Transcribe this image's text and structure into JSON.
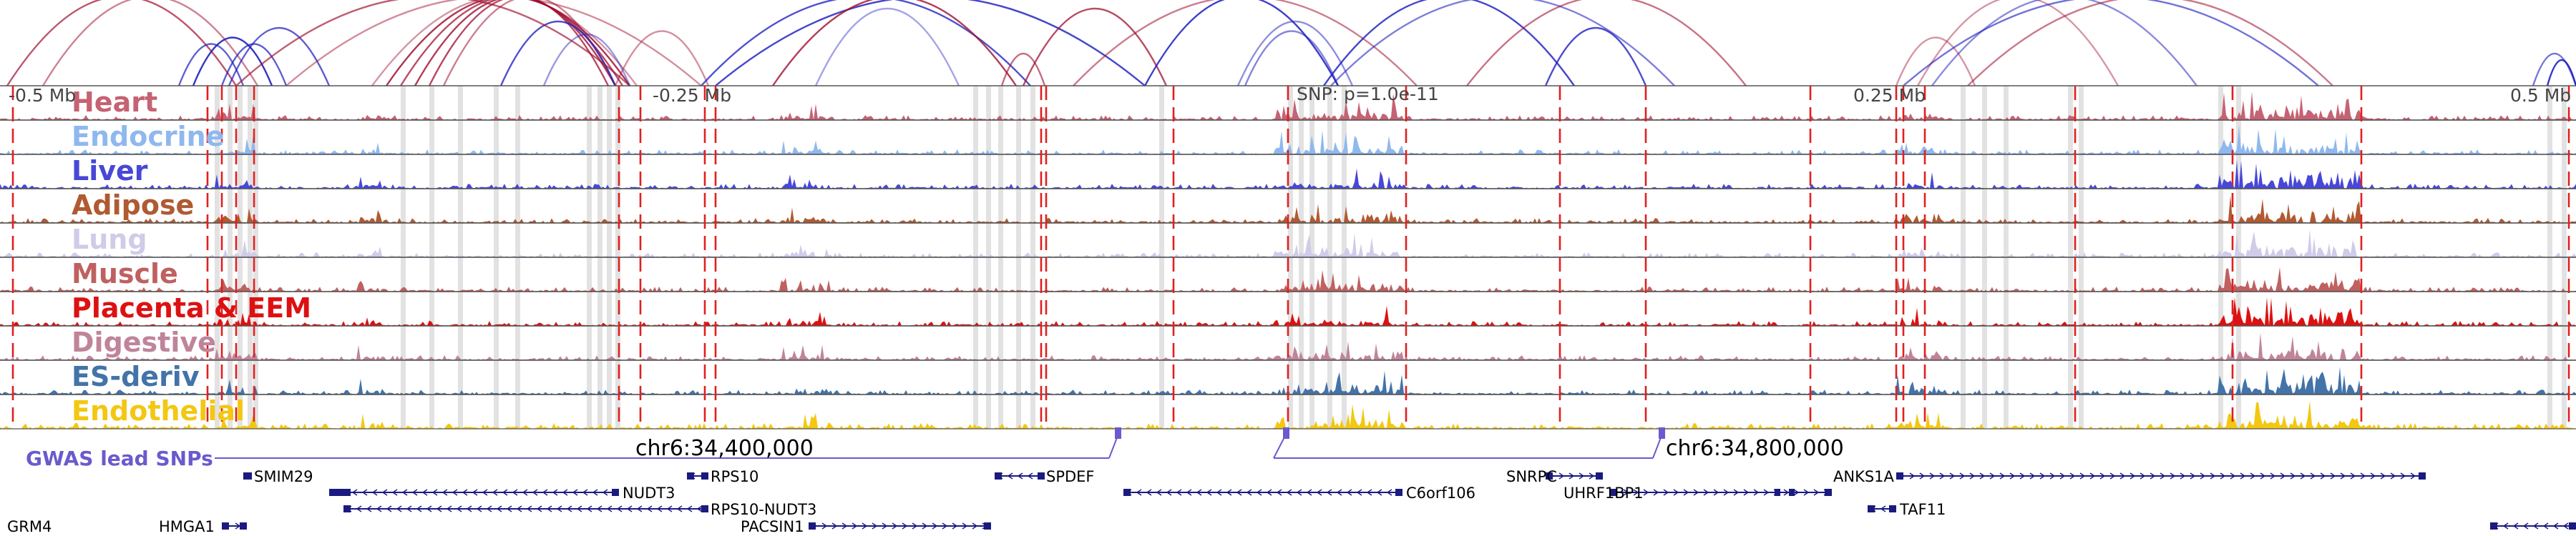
{
  "tracks": [
    {
      "name": "Heart",
      "color": "#c56273"
    },
    {
      "name": "Endocrine",
      "color": "#8fb8ef"
    },
    {
      "name": "Liver",
      "color": "#4747d8"
    },
    {
      "name": "Adipose",
      "color": "#b05a32"
    },
    {
      "name": "Lung",
      "color": "#cfcbe8"
    },
    {
      "name": "Muscle",
      "color": "#c06060"
    },
    {
      "name": "Placenta & EEM",
      "color": "#dd1111"
    },
    {
      "name": "Digestive",
      "color": "#c0849a"
    },
    {
      "name": "ES-deriv",
      "color": "#4373a8"
    },
    {
      "name": "Endothelial",
      "color": "#f3c712"
    }
  ],
  "axis": {
    "ticks": [
      "-0.5 Mb",
      "-0.25 Mb",
      "0.25 Mb",
      "0.5 Mb"
    ],
    "snp_label": "SNP: p=1.0e-11"
  },
  "gwas": {
    "label": "GWAS lead SNPs",
    "color": "#6a5acd"
  },
  "coordinates": [
    "chr6:34,400,000",
    "chr6:34,800,000"
  ],
  "genes": [
    {
      "name": "SMIM29",
      "strand": "+",
      "row": 1
    },
    {
      "name": "RPS10",
      "strand": "-",
      "row": 1
    },
    {
      "name": "SPDEF",
      "strand": "-",
      "row": 1
    },
    {
      "name": "SNRPC",
      "strand": "+",
      "row": 1
    },
    {
      "name": "ANKS1A",
      "strand": "+",
      "row": 1
    },
    {
      "name": "NUDT3",
      "strand": "-",
      "row": 2
    },
    {
      "name": "C6orf106",
      "strand": "-",
      "row": 2
    },
    {
      "name": "UHRF1BP1",
      "strand": "+",
      "row": 2
    },
    {
      "name": "RPS10-NUDT3",
      "strand": "-",
      "row": 3
    },
    {
      "name": "TAF11",
      "strand": "-",
      "row": 3
    },
    {
      "name": "GRM4",
      "strand": "-",
      "row": 4
    },
    {
      "name": "HMGA1",
      "strand": "+",
      "row": 4
    },
    {
      "name": "PACSIN1",
      "strand": "+",
      "row": 4
    }
  ],
  "colors": {
    "arc_red": "#a01030",
    "arc_blue": "#2020c0",
    "boundary": "#e02020",
    "gene": "#1a1a80"
  }
}
